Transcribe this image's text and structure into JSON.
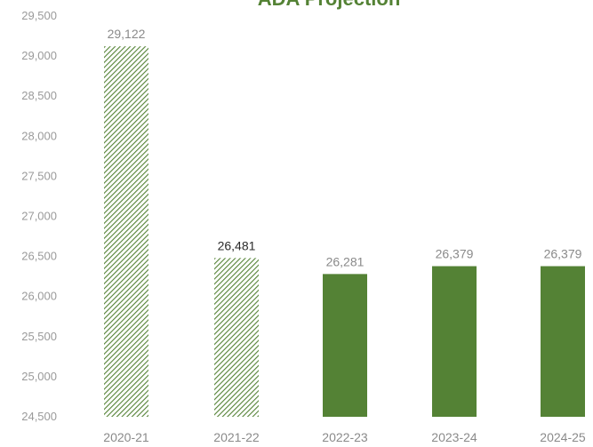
{
  "chart_data": {
    "type": "bar",
    "title": "ADA Projection",
    "categories": [
      "2020-21",
      "2021-22",
      "2022-23",
      "2023-24",
      "2024-25"
    ],
    "values": [
      29122,
      26481,
      26281,
      26379,
      26379
    ],
    "value_labels": [
      "29,122",
      "26,481",
      "26,281",
      "26,379",
      "26,379"
    ],
    "bar_styles": [
      "hatched",
      "hatched",
      "solid",
      "solid",
      "solid"
    ],
    "ylim": [
      24500,
      29500
    ],
    "yticks": [
      24500,
      25000,
      25500,
      26000,
      26500,
      27000,
      27500,
      28000,
      28500,
      29000,
      29500
    ],
    "ytick_labels": [
      "24,500",
      "25,000",
      "25,500",
      "26,000",
      "26,500",
      "27,000",
      "27,500",
      "28,000",
      "28,500",
      "29,000",
      "29,500"
    ],
    "xlabel": "",
    "ylabel": "",
    "grid": false,
    "colors": {
      "bar": "#548235",
      "title": "#548235",
      "tick": "#9a9a9a"
    }
  }
}
